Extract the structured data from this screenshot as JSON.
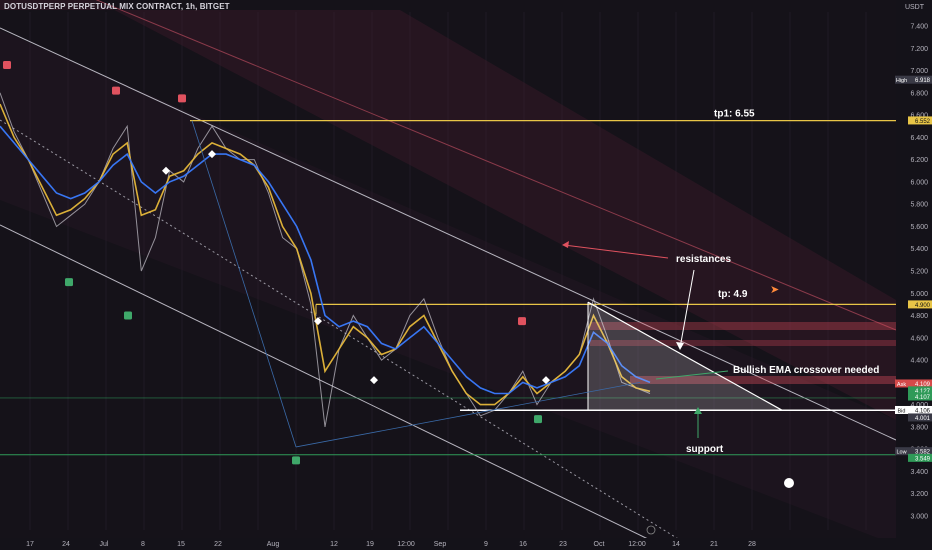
{
  "header": {
    "title": "DOTUSDTPERP PERPETUAL MIX CONTRACT, 1h, BITGET",
    "currency": "USDT"
  },
  "chart_data": {
    "type": "line",
    "title": "DOTUSDTPERP PERPETUAL MIX CONTRACT, 1h, BITGET",
    "ylim": [
      2.9,
      7.55
    ],
    "y_ticks": [
      "7.400",
      "7.200",
      "7.000",
      "6.800",
      "6.600",
      "6.400",
      "6.200",
      "6.000",
      "5.800",
      "5.600",
      "5.400",
      "5.200",
      "5.000",
      "4.800",
      "4.600",
      "4.400",
      "4.200",
      "4.000",
      "3.800",
      "3.600",
      "3.400",
      "3.200",
      "3.000"
    ],
    "x_ticks": [
      "17",
      "24",
      "Jul",
      "8",
      "15",
      "22",
      "Aug",
      "12",
      "19",
      "12:00",
      "Sep",
      "9",
      "16",
      "23",
      "Oct",
      "12:00",
      "14",
      "21",
      "28"
    ],
    "price_tags": [
      {
        "label": "High",
        "value": "6.918",
        "y": 6.918,
        "color": "#3a3a46"
      },
      {
        "label": "",
        "value": "6.552",
        "y": 6.552,
        "color": "#e8c547"
      },
      {
        "label": "",
        "value": "4.900",
        "y": 4.9,
        "color": "#e8c547"
      },
      {
        "label": "Ask",
        "value": "4.109",
        "y": 4.19,
        "color": "#d64a4a"
      },
      {
        "label": "",
        "value": "4.127",
        "y": 4.128,
        "color": "#2f9a58"
      },
      {
        "label": "",
        "value": "4.107",
        "y": 4.073,
        "color": "#2f9a58"
      },
      {
        "label": "Bid",
        "value": "4.106",
        "y": 3.952,
        "color": "#ffffff"
      },
      {
        "label": "",
        "value": "4.001",
        "y": 3.885,
        "color": "#3a3a46"
      },
      {
        "label": "Low",
        "value": "3.582",
        "y": 3.582,
        "color": "#3a3a46"
      },
      {
        "label": "",
        "value": "3.549",
        "y": 3.522,
        "color": "#2f9a58"
      }
    ],
    "levels": {
      "tp1": 6.55,
      "tp": 4.9,
      "support": 3.95,
      "low": 3.55
    },
    "annotations": {
      "tp1": "tp1: 6.55",
      "resistances": "resistances",
      "tp": "tp: 4.9",
      "ema": "Bullish EMA crossover needed",
      "support": "support"
    },
    "series": [
      {
        "name": "price",
        "color": "#c9c6cf",
        "values": [
          6.8,
          6.45,
          6.2,
          5.9,
          5.6,
          5.7,
          5.8,
          6.0,
          6.3,
          6.5,
          5.2,
          5.5,
          6.1,
          6.0,
          6.3,
          6.5,
          6.3,
          6.2,
          6.2,
          5.9,
          5.5,
          5.4,
          4.9,
          3.8,
          4.5,
          4.8,
          4.6,
          4.4,
          4.5,
          4.8,
          4.95,
          4.6,
          4.3,
          4.1,
          3.9,
          3.95,
          4.1,
          4.3,
          4.0,
          4.2,
          4.3,
          4.45,
          4.95,
          4.6,
          4.2,
          4.15,
          4.1
        ]
      },
      {
        "name": "ema-fast",
        "color": "#e6b83a",
        "values": [
          6.7,
          6.4,
          6.2,
          5.95,
          5.7,
          5.75,
          5.85,
          6.0,
          6.25,
          6.35,
          5.7,
          5.75,
          6.05,
          6.1,
          6.25,
          6.35,
          6.3,
          6.25,
          6.15,
          5.95,
          5.6,
          5.4,
          5.0,
          4.3,
          4.5,
          4.7,
          4.6,
          4.45,
          4.5,
          4.7,
          4.8,
          4.55,
          4.3,
          4.1,
          4.0,
          4.0,
          4.1,
          4.25,
          4.1,
          4.2,
          4.3,
          4.45,
          4.8,
          4.55,
          4.25,
          4.15,
          4.12
        ]
      },
      {
        "name": "ema-slow",
        "color": "#3a7bff",
        "values": [
          6.5,
          6.35,
          6.2,
          6.05,
          5.9,
          5.85,
          5.9,
          6.0,
          6.15,
          6.25,
          6.0,
          5.9,
          6.0,
          6.05,
          6.15,
          6.25,
          6.25,
          6.2,
          6.15,
          6.0,
          5.8,
          5.6,
          5.3,
          4.8,
          4.7,
          4.75,
          4.7,
          4.55,
          4.5,
          4.6,
          4.7,
          4.55,
          4.4,
          4.25,
          4.15,
          4.1,
          4.1,
          4.2,
          4.15,
          4.2,
          4.25,
          4.35,
          4.65,
          4.55,
          4.35,
          4.25,
          4.2
        ]
      }
    ]
  }
}
